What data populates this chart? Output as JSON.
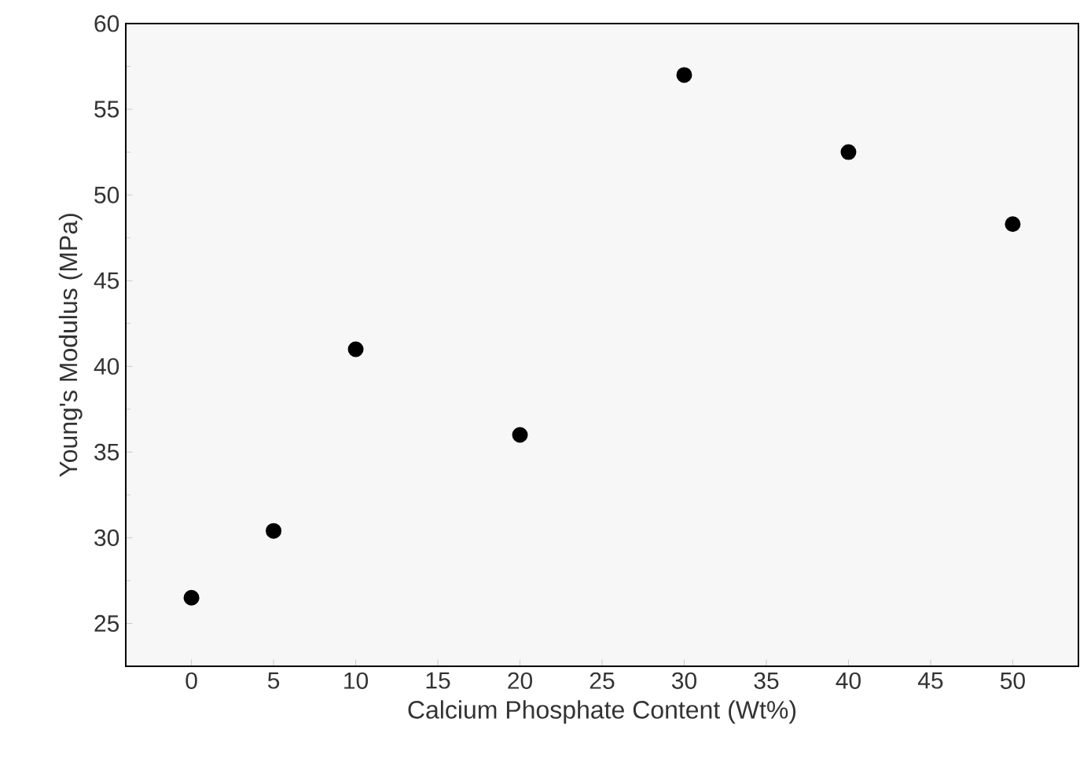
{
  "chart_data": {
    "type": "scatter",
    "xlabel": "Calcium Phosphate Content (Wt%)",
    "ylabel": "Young's Modulus (MPa)",
    "x": [
      0,
      5,
      10,
      20,
      30,
      40,
      50
    ],
    "values": [
      26.5,
      30.4,
      41,
      36,
      57,
      52.5,
      48.3
    ],
    "color": "#000000",
    "xlim": [
      -4,
      54
    ],
    "ylim": [
      22.5,
      60
    ],
    "xticks": [
      0,
      5,
      10,
      15,
      20,
      25,
      30,
      35,
      40,
      45,
      50
    ],
    "yticks": [
      25,
      30,
      35,
      40,
      45,
      50,
      55,
      60
    ]
  }
}
